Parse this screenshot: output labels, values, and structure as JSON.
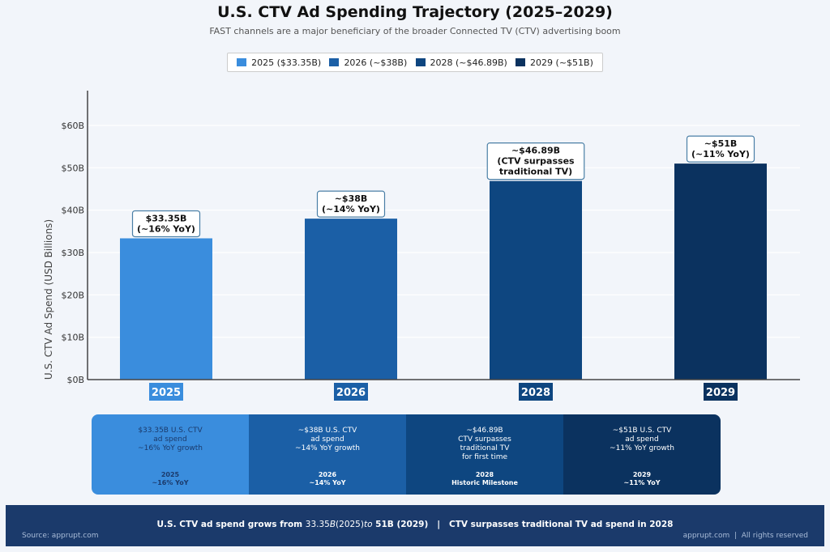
{
  "chart_data": {
    "type": "bar",
    "title": "U.S. CTV Ad Spending Trajectory (2025–2029)",
    "subtitle": "FAST channels are a major beneficiary of the broader Connected TV (CTV) advertising boom",
    "xlabel": "",
    "ylabel": "U.S. CTV Ad Spend (USD Billions)",
    "ylim": [
      0,
      68
    ],
    "yticks": [
      0,
      10,
      20,
      30,
      40,
      50,
      60
    ],
    "ytick_labels": [
      "$0B",
      "$10B",
      "$20B",
      "$30B",
      "$40B",
      "$50B",
      "$60B"
    ],
    "grid": true,
    "legend_position": "top-center",
    "categories": [
      "2025",
      "2026",
      "2028",
      "2029"
    ],
    "values": [
      33.35,
      38,
      46.89,
      51
    ],
    "colors": [
      "#3a8ddd",
      "#1b5fa6",
      "#0e4680",
      "#0b325f"
    ],
    "legend": [
      "2025 ($33.35B)",
      "2026 (~$38B)",
      "2028 (~$46.89B)",
      "2029 (~$51B)"
    ],
    "annotations": [
      "$33.35B\n(~16% YoY)",
      "~$38B\n(~14% YoY)",
      "~$46.89B\n(CTV surpasses\ntraditional TV)",
      "~$51B\n(~11% YoY)"
    ]
  },
  "cards": [
    {
      "desc": "$33.35B U.S. CTV\nad spend\n~16% YoY growth",
      "foot": "2025\n~16% YoY",
      "bg": "#3a8ddd",
      "fg": "#1b3a6b"
    },
    {
      "desc": "~$38B U.S. CTV\nad spend\n~14% YoY growth",
      "foot": "2026\n~14% YoY",
      "bg": "#1b5fa6",
      "fg": "#ffffff"
    },
    {
      "desc": "~$46.89B\nCTV surpasses\ntraditional TV\nfor first time",
      "foot": "2028\nHistoric Milestone",
      "bg": "#0e4680",
      "fg": "#ffffff"
    },
    {
      "desc": "~$51B U.S. CTV\nad spend\n~11% YoY growth",
      "foot": "2029\n~11% YoY",
      "bg": "#0b325f",
      "fg": "#ffffff"
    }
  ],
  "footer": {
    "part1": "U.S. CTV ad spend grows from ",
    "part2": "33.35",
    "part3": "B",
    "part4": "(2025)",
    "part5": "to",
    "part6": " 51B (2029)   |   CTV surpasses traditional TV ad spend in 2028",
    "source": "Source: apprupt.com",
    "rights": "apprupt.com  |  All rights reserved"
  }
}
